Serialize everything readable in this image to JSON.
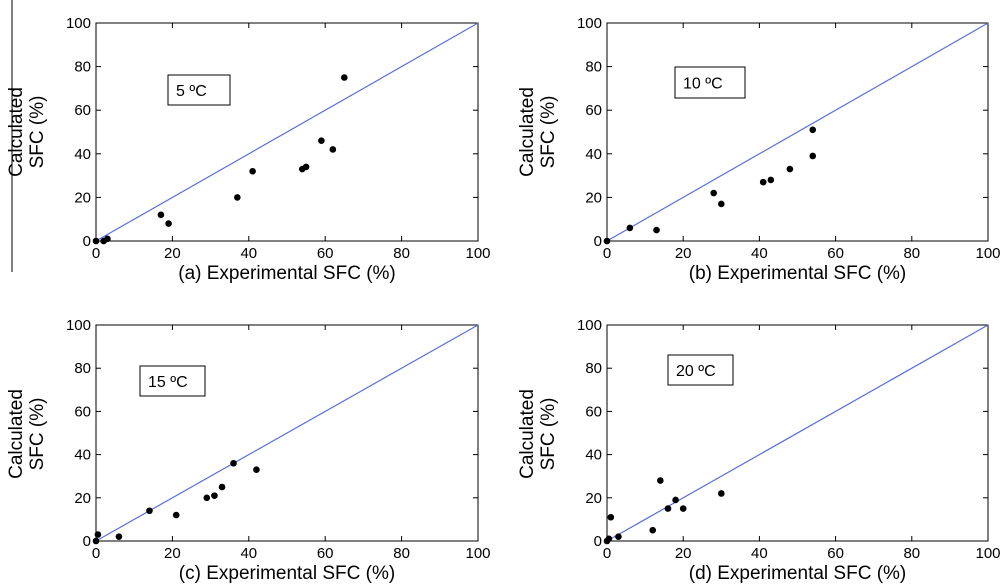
{
  "chart_data": [
    {
      "type": "scatter",
      "panel": "a",
      "annotation": "5 ºC",
      "xlabel": "(a) Experimental SFC (%)",
      "ylabel_lines": [
        "Calculated",
        "SFC (%)"
      ],
      "xlim": [
        0,
        100
      ],
      "ylim": [
        0,
        100
      ],
      "xticks": [
        "0",
        "20",
        "40",
        "60",
        "80",
        "100"
      ],
      "yticks": [
        "0",
        "20",
        "40",
        "60",
        "80",
        "100"
      ],
      "reference_line": {
        "from": [
          0,
          0
        ],
        "to": [
          100,
          100
        ],
        "color": "#5a6ee0"
      },
      "points": [
        [
          0,
          0
        ],
        [
          2,
          0
        ],
        [
          3,
          1
        ],
        [
          17,
          12
        ],
        [
          19,
          8
        ],
        [
          37,
          20
        ],
        [
          41,
          32
        ],
        [
          54,
          33
        ],
        [
          55,
          34
        ],
        [
          59,
          46
        ],
        [
          62,
          42
        ],
        [
          65,
          75
        ]
      ]
    },
    {
      "type": "scatter",
      "panel": "b",
      "annotation": "10 ºC",
      "xlabel": "(b) Experimental SFC (%)",
      "ylabel_lines": [
        "Calculated",
        "SFC (%)"
      ],
      "xlim": [
        0,
        100
      ],
      "ylim": [
        0,
        100
      ],
      "xticks": [
        "0",
        "20",
        "40",
        "60",
        "80",
        "100"
      ],
      "yticks": [
        "0",
        "20",
        "40",
        "60",
        "80",
        "100"
      ],
      "reference_line": {
        "from": [
          0,
          0
        ],
        "to": [
          100,
          100
        ],
        "color": "#5a6ee0"
      },
      "points": [
        [
          0,
          0
        ],
        [
          6,
          6
        ],
        [
          13,
          5
        ],
        [
          28,
          22
        ],
        [
          30,
          17
        ],
        [
          41,
          27
        ],
        [
          43,
          28
        ],
        [
          48,
          33
        ],
        [
          54,
          51
        ],
        [
          54,
          39
        ]
      ]
    },
    {
      "type": "scatter",
      "panel": "c",
      "annotation": "15 ºC",
      "xlabel": "(c) Experimental SFC (%)",
      "ylabel_lines": [
        "Calculated",
        "SFC (%)"
      ],
      "xlim": [
        0,
        100
      ],
      "ylim": [
        0,
        100
      ],
      "xticks": [
        "0",
        "20",
        "40",
        "60",
        "80",
        "100"
      ],
      "yticks": [
        "0",
        "20",
        "40",
        "60",
        "80",
        "100"
      ],
      "reference_line": {
        "from": [
          0,
          0
        ],
        "to": [
          100,
          100
        ],
        "color": "#5a6ee0"
      },
      "points": [
        [
          0,
          0
        ],
        [
          0.5,
          3
        ],
        [
          6,
          2
        ],
        [
          14,
          14
        ],
        [
          21,
          12
        ],
        [
          29,
          20
        ],
        [
          31,
          21
        ],
        [
          33,
          25
        ],
        [
          36,
          36
        ],
        [
          42,
          33
        ]
      ]
    },
    {
      "type": "scatter",
      "panel": "d",
      "annotation": "20 ºC",
      "xlabel": "(d) Experimental SFC (%)",
      "ylabel_lines": [
        "Calculated",
        "SFC (%)"
      ],
      "xlim": [
        0,
        100
      ],
      "ylim": [
        0,
        100
      ],
      "xticks": [
        "0",
        "20",
        "40",
        "60",
        "80",
        "100"
      ],
      "yticks": [
        "0",
        "20",
        "40",
        "60",
        "80",
        "100"
      ],
      "reference_line": {
        "from": [
          0,
          0
        ],
        "to": [
          100,
          100
        ],
        "color": "#5a6ee0"
      },
      "points": [
        [
          0,
          0
        ],
        [
          0.5,
          1
        ],
        [
          1,
          11
        ],
        [
          3,
          2
        ],
        [
          12,
          5
        ],
        [
          14,
          28
        ],
        [
          16,
          15
        ],
        [
          18,
          19
        ],
        [
          20,
          15
        ],
        [
          30,
          22
        ]
      ]
    }
  ]
}
